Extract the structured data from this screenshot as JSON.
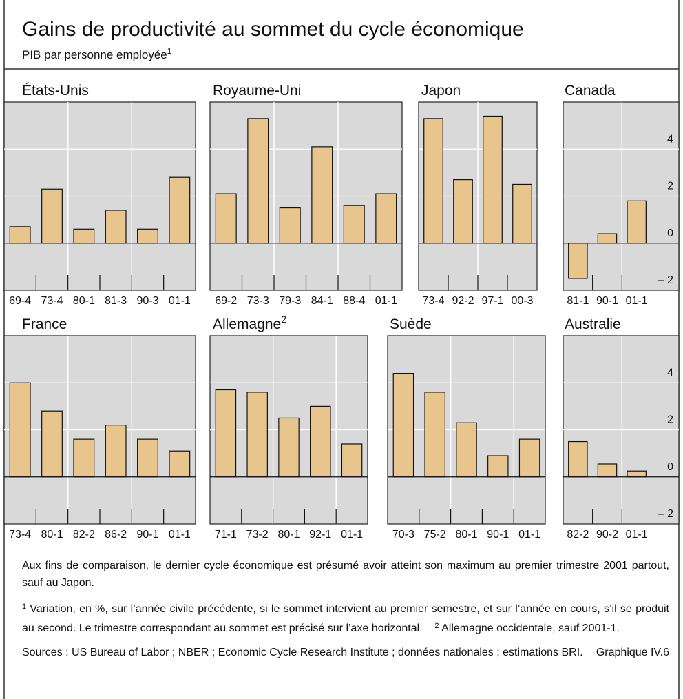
{
  "header": {
    "title": "Gains de productivité au sommet du cycle économique",
    "subtitle": "PIB par personne employée",
    "subtitle_note": "1"
  },
  "chart_data": [
    {
      "type": "bar",
      "title": "États-Unis",
      "categories": [
        "69-4",
        "73-4",
        "80-1",
        "81-3",
        "90-3",
        "01-1"
      ],
      "values": [
        0.7,
        2.3,
        0.6,
        1.4,
        0.6,
        2.8
      ],
      "ylim": [
        -2,
        6
      ],
      "yticks": [
        -2,
        0,
        2,
        4
      ],
      "tick_labels": false,
      "grid": true,
      "color": "#e8c58d"
    },
    {
      "type": "bar",
      "title": "Royaume-Uni",
      "categories": [
        "69-2",
        "73-3",
        "79-3",
        "84-1",
        "88-4",
        "01-1"
      ],
      "values": [
        2.1,
        5.3,
        1.5,
        4.1,
        1.6,
        2.1
      ],
      "ylim": [
        -2,
        6
      ],
      "yticks": [
        -2,
        0,
        2,
        4
      ],
      "tick_labels": false,
      "grid": true,
      "color": "#e8c58d"
    },
    {
      "type": "bar",
      "title": "Japon",
      "categories": [
        "73-4",
        "92-2",
        "97-1",
        "00-3"
      ],
      "values": [
        5.3,
        2.7,
        5.4,
        2.5
      ],
      "ylim": [
        -2,
        6
      ],
      "yticks": [
        -2,
        0,
        2,
        4
      ],
      "tick_labels": false,
      "grid": true,
      "color": "#e8c58d"
    },
    {
      "type": "bar",
      "title": "Canada",
      "categories": [
        "81-1",
        "90-1",
        "01-1"
      ],
      "values": [
        -1.5,
        0.4,
        1.8
      ],
      "ylim": [
        -2,
        6
      ],
      "yticks": [
        {
          "value": -2,
          "label": "– 2"
        },
        0,
        2,
        4
      ],
      "tick_labels": true,
      "grid": true,
      "color": "#e8c58d"
    },
    {
      "type": "bar",
      "title": "France",
      "categories": [
        "73-4",
        "80-1",
        "82-2",
        "86-2",
        "90-1",
        "01-1"
      ],
      "values": [
        4.0,
        2.8,
        1.6,
        2.2,
        1.6,
        1.1
      ],
      "ylim": [
        -2,
        6
      ],
      "yticks": [
        -2,
        0,
        2,
        4
      ],
      "tick_labels": false,
      "grid": true,
      "color": "#e8c58d"
    },
    {
      "type": "bar",
      "title": "Allemagne",
      "title_note": "2",
      "categories": [
        "71-1",
        "73-2",
        "80-1",
        "92-1",
        "01-1"
      ],
      "values": [
        3.7,
        3.6,
        2.5,
        3.0,
        1.4
      ],
      "ylim": [
        -2,
        6
      ],
      "yticks": [
        -2,
        0,
        2,
        4
      ],
      "tick_labels": false,
      "grid": true,
      "color": "#e8c58d"
    },
    {
      "type": "bar",
      "title": "Suède",
      "categories": [
        "70-3",
        "75-2",
        "80-1",
        "90-1",
        "01-1"
      ],
      "values": [
        4.4,
        3.6,
        2.3,
        0.9,
        1.6
      ],
      "ylim": [
        -2,
        6
      ],
      "yticks": [
        -2,
        0,
        2,
        4
      ],
      "tick_labels": false,
      "grid": true,
      "color": "#e8c58d"
    },
    {
      "type": "bar",
      "title": "Australie",
      "categories": [
        "82-2",
        "90-2",
        "01-1"
      ],
      "values": [
        1.5,
        0.55,
        0.25
      ],
      "ylim": [
        -2,
        6
      ],
      "yticks": [
        {
          "value": -2,
          "label": "– 2"
        },
        0,
        2,
        4
      ],
      "tick_labels": true,
      "grid": true,
      "color": "#e8c58d"
    }
  ],
  "notes": {
    "intro": "Aux fins de comparaison, le dernier cycle économique est présumé avoir atteint son maximum au premier trimestre 2001 partout, sauf au Japon.",
    "footnotes": [
      {
        "marker": "1",
        "text": "Variation, en %, sur l’année civile précédente, si le sommet intervient au premier semestre, et sur l’année en cours, s’il se produit au second. Le trimestre correspondant au sommet est précisé sur l’axe horizontal."
      },
      {
        "marker": "2",
        "text": "Allemagne occidentale, sauf 2001-1."
      }
    ],
    "sources": "Sources : US Bureau of Labor ; NBER ; Economic Cycle Research Institute ; données nationales ; estimations BRI.",
    "graph_id": "Graphique IV.6"
  }
}
